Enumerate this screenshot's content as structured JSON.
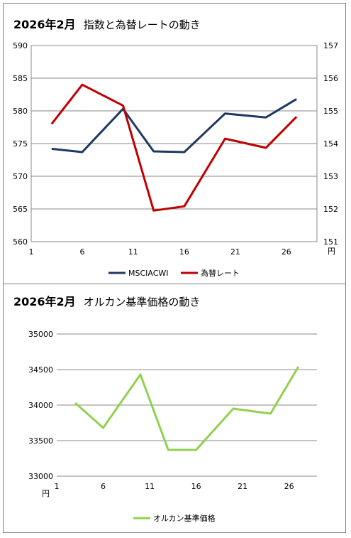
{
  "charts": [
    {
      "title_bold": "2026年2月",
      "title_rest": "指数と為替レートの動き",
      "y_unit_label": "円"
    },
    {
      "title_bold": "2026年2月",
      "title_rest": "オルカン基準価格の動き",
      "y_unit_label": "円"
    }
  ],
  "chart_data": [
    {
      "type": "line",
      "x": [
        3,
        6,
        10,
        13,
        16,
        20,
        24,
        27
      ],
      "xlim": [
        1,
        29
      ],
      "xticks": [
        "1",
        "6",
        "11",
        "16",
        "21",
        "26"
      ],
      "xtick_values": [
        1,
        6,
        11,
        16,
        21,
        26
      ],
      "ylim": [
        560,
        590
      ],
      "yticks": [
        "590",
        "585",
        "580",
        "575",
        "570",
        "565",
        "560"
      ],
      "y2lim": [
        151,
        157
      ],
      "y2ticks": [
        "157",
        "156",
        "155",
        "154",
        "153",
        "152",
        "151"
      ],
      "grid": true,
      "legend_position": "bottom",
      "series": [
        {
          "name": "MSCIACWI",
          "axis": "left",
          "color": "#1f3864",
          "values": [
            574.2,
            573.7,
            580.3,
            573.8,
            573.7,
            579.6,
            579.0,
            581.8
          ]
        },
        {
          "name": "為替レート",
          "axis": "right",
          "color": "#c00000",
          "values": [
            154.6,
            155.8,
            155.16,
            151.95,
            152.08,
            154.15,
            153.87,
            154.82
          ]
        }
      ]
    },
    {
      "type": "line",
      "x": [
        3,
        6,
        10,
        13,
        16,
        20,
        24,
        27
      ],
      "xlim": [
        1,
        29
      ],
      "xticks": [
        "1",
        "6",
        "11",
        "16",
        "21",
        "26"
      ],
      "xtick_values": [
        1,
        6,
        11,
        16,
        21,
        26
      ],
      "ylim": [
        33000,
        35000
      ],
      "yticks": [
        "35000",
        "34500",
        "34000",
        "33500",
        "33000"
      ],
      "grid": true,
      "legend_position": "bottom",
      "series": [
        {
          "name": "オルカン基準価格",
          "axis": "left",
          "color": "#92d050",
          "values": [
            34030,
            33680,
            34430,
            33370,
            33370,
            33950,
            33880,
            34540
          ]
        }
      ]
    }
  ]
}
